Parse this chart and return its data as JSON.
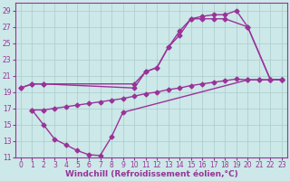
{
  "bg_color": "#cce8e8",
  "grid_color": "#aacccc",
  "line_color": "#993399",
  "line_width": 1.0,
  "marker": "D",
  "marker_size": 2.5,
  "xlabel": "Windchill (Refroidissement éolien,°C)",
  "xlabel_fontsize": 6.5,
  "tick_fontsize": 5.5,
  "xlim": [
    -0.5,
    23.5
  ],
  "ylim": [
    11,
    30
  ],
  "yticks": [
    11,
    13,
    15,
    17,
    19,
    21,
    23,
    25,
    27,
    29
  ],
  "xticks": [
    0,
    1,
    2,
    3,
    4,
    5,
    6,
    7,
    8,
    9,
    10,
    11,
    12,
    13,
    14,
    15,
    16,
    17,
    18,
    19,
    20,
    21,
    22,
    23
  ],
  "series": [
    {
      "x": [
        0,
        1,
        2,
        10,
        11,
        12,
        13,
        14,
        15,
        16,
        17,
        18,
        19,
        20,
        22,
        23
      ],
      "y": [
        19.5,
        20.0,
        20.0,
        20.0,
        21.5,
        22.0,
        24.5,
        26.5,
        28.0,
        28.3,
        28.5,
        28.5,
        29.0,
        27.0,
        20.5,
        20.5
      ]
    },
    {
      "x": [
        0,
        1,
        2,
        10,
        11,
        12,
        13,
        14,
        15,
        16,
        17,
        18,
        20,
        22,
        23
      ],
      "y": [
        19.5,
        20.0,
        20.0,
        19.5,
        21.5,
        22.0,
        24.5,
        26.0,
        28.0,
        28.0,
        28.0,
        28.0,
        27.0,
        20.5,
        20.5
      ]
    },
    {
      "x": [
        1,
        2,
        3,
        4,
        5,
        6,
        7,
        8,
        9,
        10,
        11,
        12,
        13,
        14,
        15,
        16,
        17,
        18,
        19,
        20,
        21,
        22,
        23
      ],
      "y": [
        16.8,
        16.8,
        17.0,
        17.2,
        17.4,
        17.6,
        17.8,
        18.0,
        18.2,
        18.5,
        18.8,
        19.0,
        19.3,
        19.5,
        19.8,
        20.0,
        20.2,
        20.4,
        20.6,
        20.5,
        20.5,
        20.5,
        20.5
      ]
    },
    {
      "x": [
        1,
        2,
        3,
        4,
        5,
        6,
        7,
        8,
        9,
        20,
        21,
        22,
        23
      ],
      "y": [
        16.8,
        15.0,
        13.2,
        12.5,
        11.8,
        11.3,
        11.2,
        13.5,
        16.5,
        20.5,
        20.5,
        20.5,
        20.5
      ]
    }
  ]
}
